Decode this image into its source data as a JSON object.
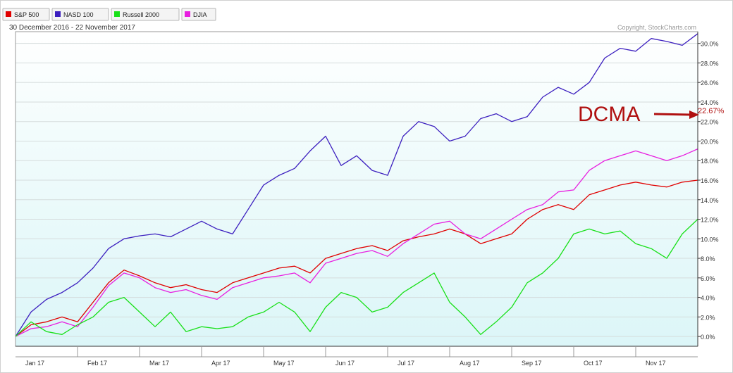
{
  "legend_bar": {
    "items": [
      {
        "label": "S&P 500",
        "color": "#e00000"
      },
      {
        "label": "NASD 100",
        "color": "#3c1fbf"
      },
      {
        "label": "Russell 2000",
        "color": "#19e019"
      },
      {
        "label": "DJIA",
        "color": "#e81fe0"
      }
    ]
  },
  "date_range": "30 December 2016 - 22 November 2017",
  "copyright": "Copyright, StockCharts.com",
  "annotation": {
    "text": "DCMA",
    "value_label": "22.67%",
    "color": "#b01010"
  },
  "chart_data": {
    "type": "line",
    "title": "",
    "x_tick_labels": [
      "Jan 17",
      "Feb 17",
      "Mar 17",
      "Apr 17",
      "May 17",
      "Jun 17",
      "Jul 17",
      "Aug 17",
      "Sep 17",
      "Oct 17",
      "Nov 17"
    ],
    "y_tick_labels": [
      "0.0%",
      "2.0%",
      "4.0%",
      "6.0%",
      "8.0%",
      "10.0%",
      "12.0%",
      "14.0%",
      "16.0%",
      "18.0%",
      "20.0%",
      "22.0%",
      "24.0%",
      "26.0%",
      "28.0%",
      "30.0%"
    ],
    "ylim": [
      -1.0,
      31.2
    ],
    "xlim": [
      0,
      11
    ],
    "x_unit": "months since 30 Dec 2016",
    "y_unit": "percent change",
    "grid": true,
    "legend_position": "top-left",
    "series": [
      {
        "name": "NASD 100",
        "color": "#3c1fbf",
        "x": [
          0,
          0.25,
          0.5,
          0.75,
          1.0,
          1.25,
          1.5,
          1.75,
          2.0,
          2.25,
          2.5,
          2.75,
          3.0,
          3.25,
          3.5,
          3.75,
          4.0,
          4.25,
          4.5,
          4.75,
          5.0,
          5.25,
          5.5,
          5.75,
          6.0,
          6.25,
          6.5,
          6.75,
          7.0,
          7.25,
          7.5,
          7.75,
          8.0,
          8.25,
          8.5,
          8.75,
          9.0,
          9.25,
          9.5,
          9.75,
          10.0,
          10.25,
          10.5,
          10.75,
          11.0
        ],
        "y": [
          0,
          2.5,
          3.8,
          4.5,
          5.5,
          7.0,
          9.0,
          10.0,
          10.3,
          10.5,
          10.2,
          11.0,
          11.8,
          11.0,
          10.5,
          13.0,
          15.5,
          16.5,
          17.2,
          19.0,
          20.5,
          17.5,
          18.5,
          17.0,
          16.5,
          20.5,
          22.0,
          21.5,
          20.0,
          20.5,
          22.3,
          22.8,
          22.0,
          22.5,
          24.5,
          25.5,
          24.8,
          26.0,
          28.5,
          29.5,
          29.2,
          30.5,
          30.2,
          29.8,
          31.0
        ]
      },
      {
        "name": "S&P 500",
        "color": "#e00000",
        "x": [
          0,
          0.25,
          0.5,
          0.75,
          1.0,
          1.25,
          1.5,
          1.75,
          2.0,
          2.25,
          2.5,
          2.75,
          3.0,
          3.25,
          3.5,
          3.75,
          4.0,
          4.25,
          4.5,
          4.75,
          5.0,
          5.25,
          5.5,
          5.75,
          6.0,
          6.25,
          6.5,
          6.75,
          7.0,
          7.25,
          7.5,
          7.75,
          8.0,
          8.25,
          8.5,
          8.75,
          9.0,
          9.25,
          9.5,
          9.75,
          10.0,
          10.25,
          10.5,
          10.75,
          11.0
        ],
        "y": [
          0,
          1.2,
          1.5,
          2.0,
          1.5,
          3.5,
          5.5,
          6.8,
          6.2,
          5.5,
          5.0,
          5.3,
          4.8,
          4.5,
          5.5,
          6.0,
          6.5,
          7.0,
          7.2,
          6.5,
          8.0,
          8.5,
          9.0,
          9.3,
          8.8,
          9.8,
          10.2,
          10.5,
          11.0,
          10.5,
          9.5,
          10.0,
          10.5,
          12.0,
          13.0,
          13.5,
          13.0,
          14.5,
          15.0,
          15.5,
          15.8,
          15.5,
          15.3,
          15.8,
          16.0
        ]
      },
      {
        "name": "DJIA",
        "color": "#e81fe0",
        "x": [
          0,
          0.25,
          0.5,
          0.75,
          1.0,
          1.25,
          1.5,
          1.75,
          2.0,
          2.25,
          2.5,
          2.75,
          3.0,
          3.25,
          3.5,
          3.75,
          4.0,
          4.25,
          4.5,
          4.75,
          5.0,
          5.25,
          5.5,
          5.75,
          6.0,
          6.25,
          6.5,
          6.75,
          7.0,
          7.25,
          7.5,
          7.75,
          8.0,
          8.25,
          8.5,
          8.75,
          9.0,
          9.25,
          9.5,
          9.75,
          10.0,
          10.25,
          10.5,
          10.75,
          11.0
        ],
        "y": [
          0,
          0.8,
          1.0,
          1.5,
          1.0,
          3.0,
          5.2,
          6.5,
          6.0,
          5.0,
          4.5,
          4.8,
          4.2,
          3.8,
          5.0,
          5.5,
          6.0,
          6.2,
          6.5,
          5.5,
          7.5,
          8.0,
          8.5,
          8.8,
          8.2,
          9.5,
          10.5,
          11.5,
          11.8,
          10.5,
          10.0,
          11.0,
          12.0,
          13.0,
          13.5,
          14.8,
          15.0,
          17.0,
          18.0,
          18.5,
          19.0,
          18.5,
          18.0,
          18.5,
          19.2
        ]
      },
      {
        "name": "Russell 2000",
        "color": "#19e019",
        "x": [
          0,
          0.25,
          0.5,
          0.75,
          1.0,
          1.25,
          1.5,
          1.75,
          2.0,
          2.25,
          2.5,
          2.75,
          3.0,
          3.25,
          3.5,
          3.75,
          4.0,
          4.25,
          4.5,
          4.75,
          5.0,
          5.25,
          5.5,
          5.75,
          6.0,
          6.25,
          6.5,
          6.75,
          7.0,
          7.25,
          7.5,
          7.75,
          8.0,
          8.25,
          8.5,
          8.75,
          9.0,
          9.25,
          9.5,
          9.75,
          10.0,
          10.25,
          10.5,
          10.75,
          11.0
        ],
        "y": [
          0,
          1.5,
          0.5,
          0.2,
          1.2,
          2.0,
          3.5,
          4.0,
          2.5,
          1.0,
          2.5,
          0.5,
          1.0,
          0.8,
          1.0,
          2.0,
          2.5,
          3.5,
          2.5,
          0.5,
          3.0,
          4.5,
          4.0,
          2.5,
          3.0,
          4.5,
          5.5,
          6.5,
          3.5,
          2.0,
          0.2,
          1.5,
          3.0,
          5.5,
          6.5,
          8.0,
          10.5,
          11.0,
          10.5,
          10.8,
          9.5,
          9.0,
          8.0,
          10.5,
          12.0
        ]
      }
    ]
  }
}
